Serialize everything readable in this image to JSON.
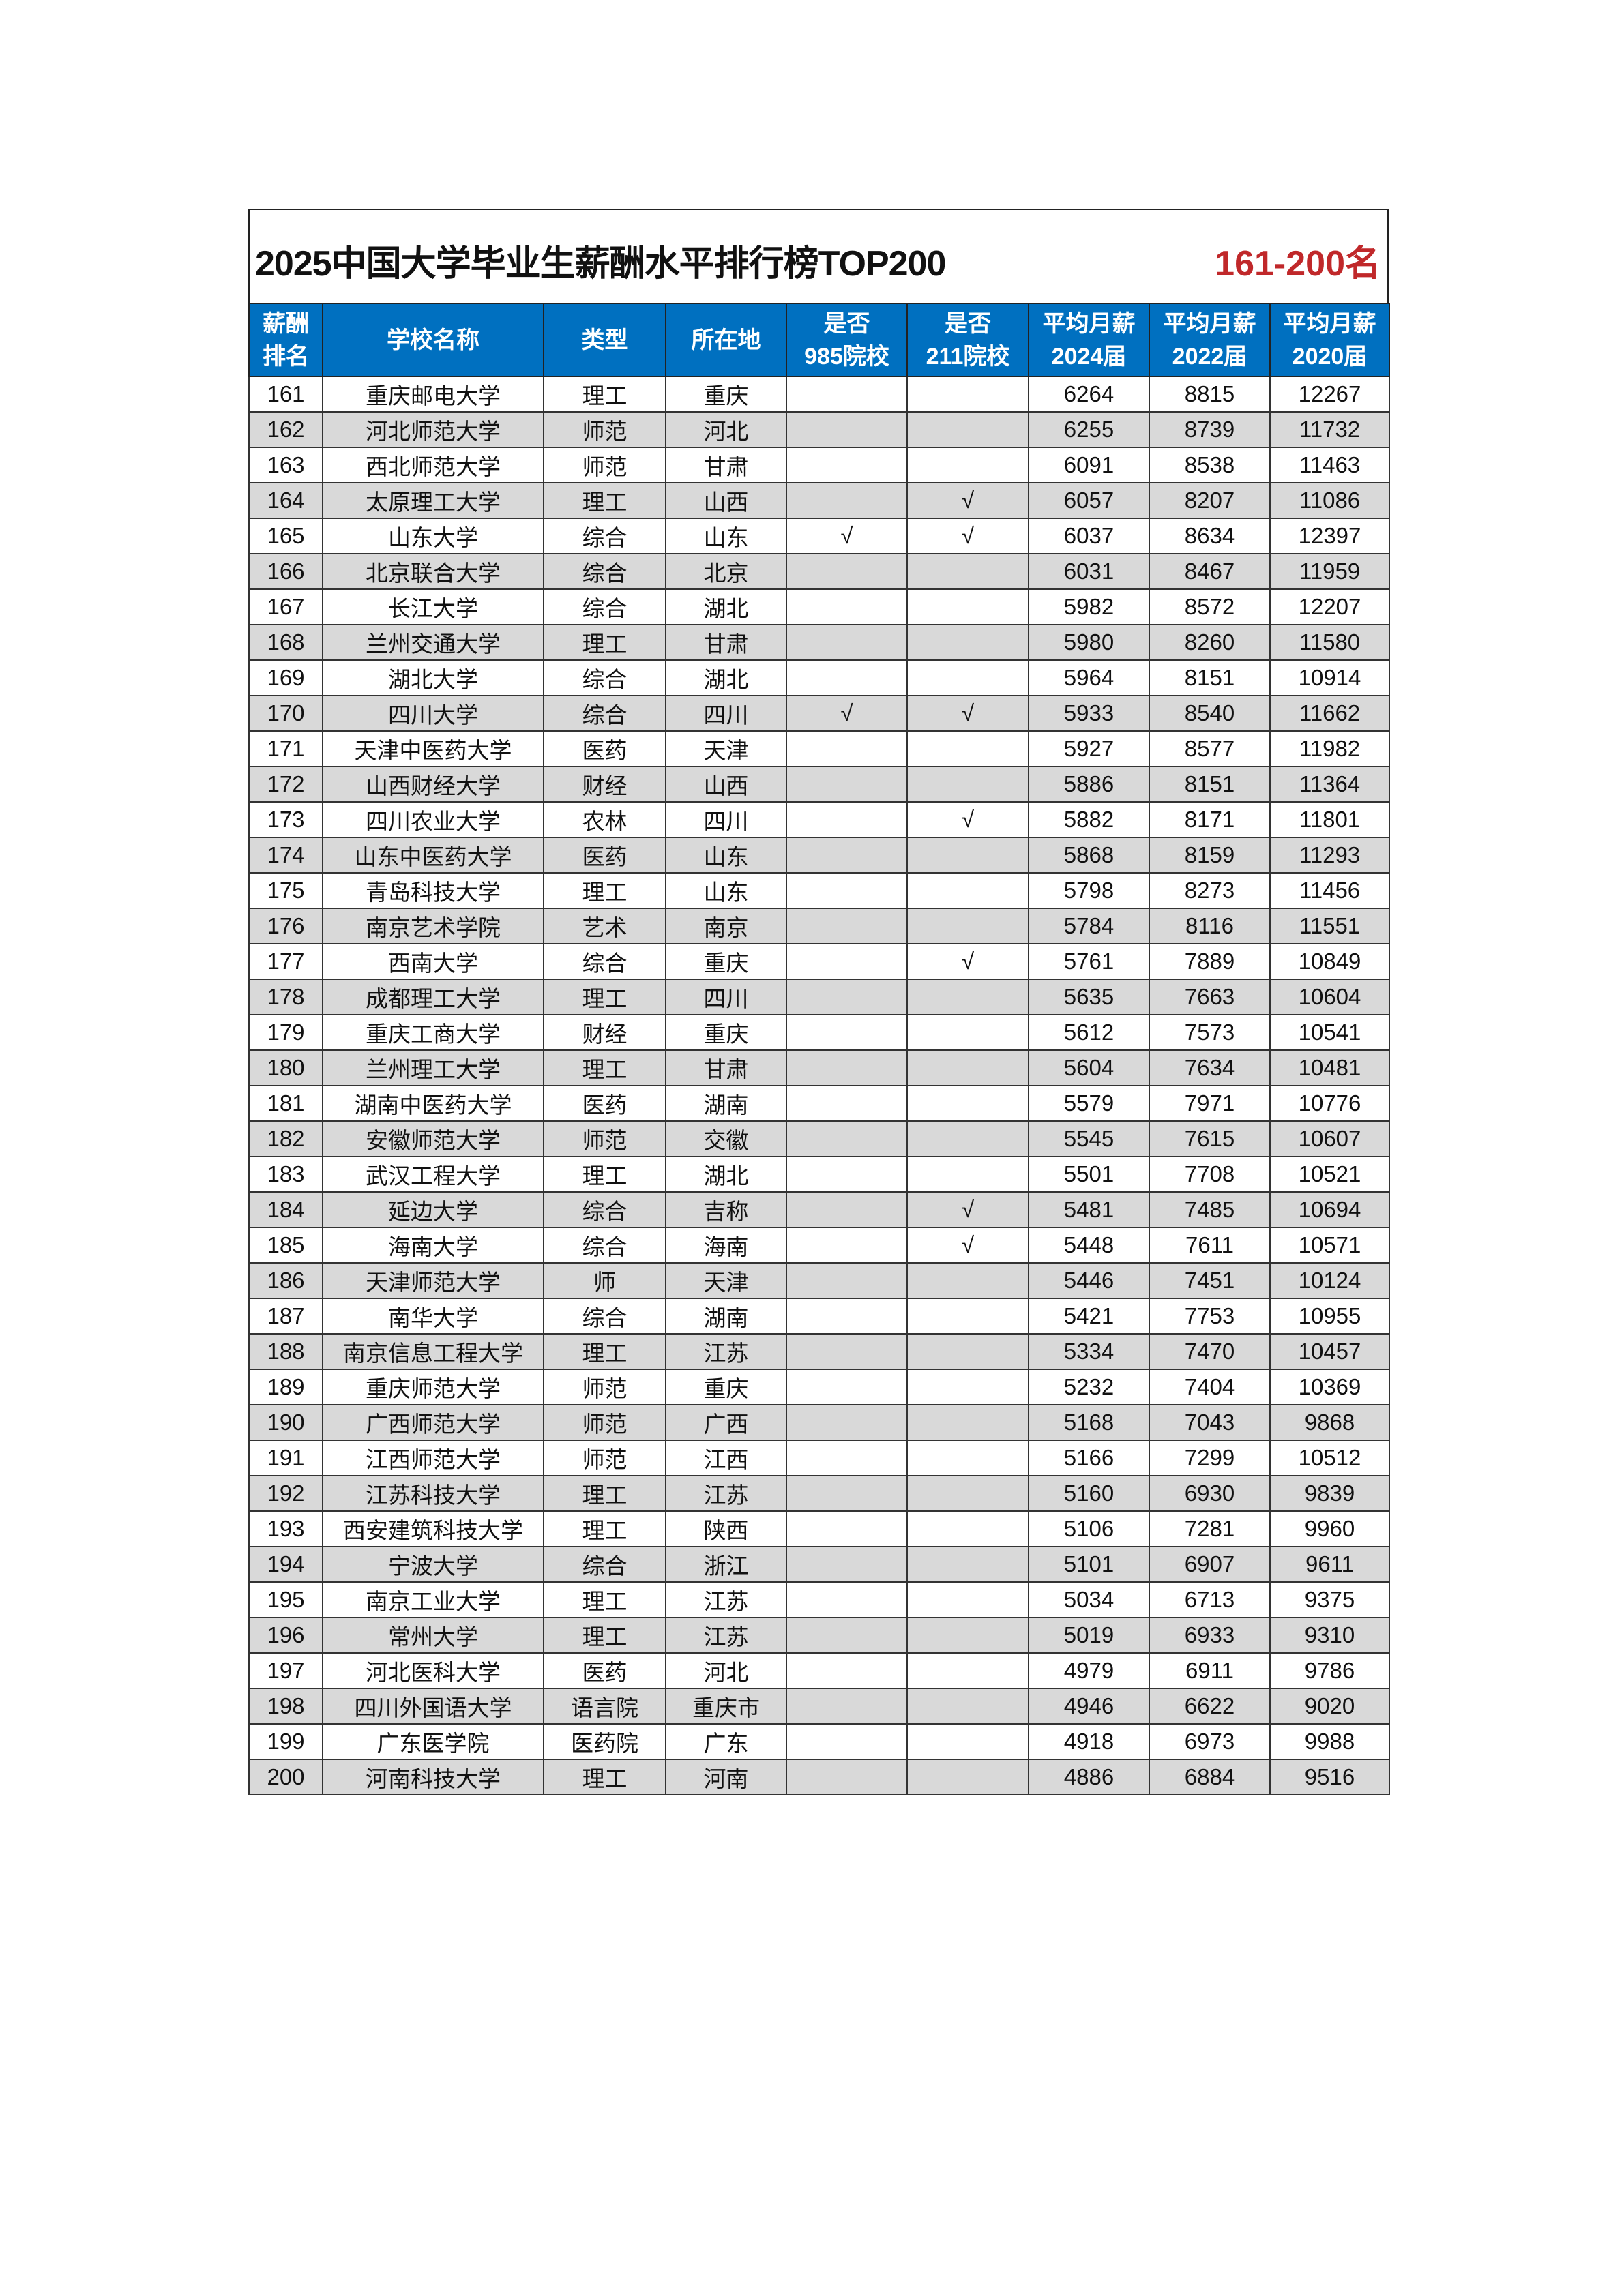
{
  "title": "2025中国大学毕业生薪酬水平排行榜TOP200",
  "range_label": "161-200名",
  "colors": {
    "header_bg": "#0070c0",
    "range_text": "#c0282a",
    "alt_row": "#d9d9d9"
  },
  "columns": [
    [
      "薪酬",
      "排名"
    ],
    [
      "学校名称"
    ],
    [
      "类型"
    ],
    [
      "所在地"
    ],
    [
      "是否",
      "985院校"
    ],
    [
      "是否",
      "211院校"
    ],
    [
      "平均月薪",
      "2024届"
    ],
    [
      "平均月薪",
      "2022届"
    ],
    [
      "平均月薪",
      "2020届"
    ]
  ],
  "rows": [
    [
      "161",
      "重庆邮电大学",
      "理工",
      "重庆",
      "",
      "",
      "6264",
      "8815",
      "12267"
    ],
    [
      "162",
      "河北师范大学",
      "师范",
      "河北",
      "",
      "",
      "6255",
      "8739",
      "11732"
    ],
    [
      "163",
      "西北师范大学",
      "师范",
      "甘肃",
      "",
      "",
      "6091",
      "8538",
      "11463"
    ],
    [
      "164",
      "太原理工大学",
      "理工",
      "山西",
      "",
      "√",
      "6057",
      "8207",
      "11086"
    ],
    [
      "165",
      "山东大学",
      "综合",
      "山东",
      "√",
      "√",
      "6037",
      "8634",
      "12397"
    ],
    [
      "166",
      "北京联合大学",
      "综合",
      "北京",
      "",
      "",
      "6031",
      "8467",
      "11959"
    ],
    [
      "167",
      "长江大学",
      "综合",
      "湖北",
      "",
      "",
      "5982",
      "8572",
      "12207"
    ],
    [
      "168",
      "兰州交通大学",
      "理工",
      "甘肃",
      "",
      "",
      "5980",
      "8260",
      "11580"
    ],
    [
      "169",
      "湖北大学",
      "综合",
      "湖北",
      "",
      "",
      "5964",
      "8151",
      "10914"
    ],
    [
      "170",
      "四川大学",
      "综合",
      "四川",
      "√",
      "√",
      "5933",
      "8540",
      "11662"
    ],
    [
      "171",
      "天津中医药大学",
      "医药",
      "天津",
      "",
      "",
      "5927",
      "8577",
      "11982"
    ],
    [
      "172",
      "山西财经大学",
      "财经",
      "山西",
      "",
      "",
      "5886",
      "8151",
      "11364"
    ],
    [
      "173",
      "四川农业大学",
      "农林",
      "四川",
      "",
      "√",
      "5882",
      "8171",
      "11801"
    ],
    [
      "174",
      "山东中医药大学",
      "医药",
      "山东",
      "",
      "",
      "5868",
      "8159",
      "11293"
    ],
    [
      "175",
      "青岛科技大学",
      "理工",
      "山东",
      "",
      "",
      "5798",
      "8273",
      "11456"
    ],
    [
      "176",
      "南京艺术学院",
      "艺术",
      "南京",
      "",
      "",
      "5784",
      "8116",
      "11551"
    ],
    [
      "177",
      "西南大学",
      "综合",
      "重庆",
      "",
      "√",
      "5761",
      "7889",
      "10849"
    ],
    [
      "178",
      "成都理工大学",
      "理工",
      "四川",
      "",
      "",
      "5635",
      "7663",
      "10604"
    ],
    [
      "179",
      "重庆工商大学",
      "财经",
      "重庆",
      "",
      "",
      "5612",
      "7573",
      "10541"
    ],
    [
      "180",
      "兰州理工大学",
      "理工",
      "甘肃",
      "",
      "",
      "5604",
      "7634",
      "10481"
    ],
    [
      "181",
      "湖南中医药大学",
      "医药",
      "湖南",
      "",
      "",
      "5579",
      "7971",
      "10776"
    ],
    [
      "182",
      "安徽师范大学",
      "师范",
      "交徽",
      "",
      "",
      "5545",
      "7615",
      "10607"
    ],
    [
      "183",
      "武汉工程大学",
      "理工",
      "湖北",
      "",
      "",
      "5501",
      "7708",
      "10521"
    ],
    [
      "184",
      "延边大学",
      "综合",
      "吉称",
      "",
      "√",
      "5481",
      "7485",
      "10694"
    ],
    [
      "185",
      "海南大学",
      "综合",
      "海南",
      "",
      "√",
      "5448",
      "7611",
      "10571"
    ],
    [
      "186",
      "天津师范大学",
      "师",
      "天津",
      "",
      "",
      "5446",
      "7451",
      "10124"
    ],
    [
      "187",
      "南华大学",
      "综合",
      "湖南",
      "",
      "",
      "5421",
      "7753",
      "10955"
    ],
    [
      "188",
      "南京信息工程大学",
      "理工",
      "江苏",
      "",
      "",
      "5334",
      "7470",
      "10457"
    ],
    [
      "189",
      "重庆师范大学",
      "师范",
      "重庆",
      "",
      "",
      "5232",
      "7404",
      "10369"
    ],
    [
      "190",
      "广西师范大学",
      "师范",
      "广西",
      "",
      "",
      "5168",
      "7043",
      "9868"
    ],
    [
      "191",
      "江西师范大学",
      "师范",
      "江西",
      "",
      "",
      "5166",
      "7299",
      "10512"
    ],
    [
      "192",
      "江苏科技大学",
      "理工",
      "江苏",
      "",
      "",
      "5160",
      "6930",
      "9839"
    ],
    [
      "193",
      "西安建筑科技大学",
      "理工",
      "陕西",
      "",
      "",
      "5106",
      "7281",
      "9960"
    ],
    [
      "194",
      "宁波大学",
      "综合",
      "浙江",
      "",
      "",
      "5101",
      "6907",
      "9611"
    ],
    [
      "195",
      "南京工业大学",
      "理工",
      "江苏",
      "",
      "",
      "5034",
      "6713",
      "9375"
    ],
    [
      "196",
      "常州大学",
      "理工",
      "江苏",
      "",
      "",
      "5019",
      "6933",
      "9310"
    ],
    [
      "197",
      "河北医科大学",
      "医药",
      "河北",
      "",
      "",
      "4979",
      "6911",
      "9786"
    ],
    [
      "198",
      "四川外国语大学",
      "语言院",
      "重庆市",
      "",
      "",
      "4946",
      "6622",
      "9020"
    ],
    [
      "199",
      "广东医学院",
      "医药院",
      "广东",
      "",
      "",
      "4918",
      "6973",
      "9988"
    ],
    [
      "200",
      "河南科技大学",
      "理工",
      "河南",
      "",
      "",
      "4886",
      "6884",
      "9516"
    ]
  ]
}
